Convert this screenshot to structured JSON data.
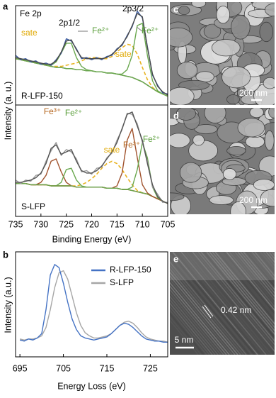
{
  "chart_data": [
    {
      "type": "line",
      "label": "a",
      "ylabel": "Intensity (a. u.)",
      "x": [
        735,
        734,
        733,
        732,
        731,
        730,
        729,
        728,
        727,
        726,
        725,
        724,
        723,
        722,
        721,
        720,
        719,
        718,
        717,
        716,
        715,
        714,
        713,
        712,
        711,
        710,
        709,
        708,
        707,
        706,
        705
      ],
      "xlim": [
        735,
        705
      ],
      "ylim": [
        0.1,
        1.0
      ],
      "annotations": [
        {
          "text": "Fe 2p",
          "color": "#000000"
        },
        {
          "text": "2p1/2",
          "color": "#000000"
        },
        {
          "text": "2p3/2",
          "color": "#000000"
        },
        {
          "text": "sate",
          "color": "#e0a800"
        },
        {
          "text": "Fe²⁺",
          "color": "#5a9e3a"
        },
        {
          "text": "sate",
          "color": "#e0a800"
        },
        {
          "text": "Fe²⁺",
          "color": "#5a9e3a"
        },
        {
          "text": "R-LFP-150",
          "color": "#000000"
        }
      ],
      "series": [
        {
          "color": "#5a6b2e",
          "values": [
            0.52,
            0.51,
            0.5,
            0.49,
            0.48,
            0.47,
            0.46,
            0.45,
            0.44,
            0.44,
            0.43,
            0.43,
            0.42,
            0.42,
            0.41,
            0.41,
            0.4,
            0.4,
            0.39,
            0.39,
            0.38,
            0.37,
            0.36,
            0.35,
            0.33,
            0.31,
            0.28,
            0.25,
            0.22,
            0.2,
            0.18
          ]
        },
        {
          "color": "#e8b322",
          "dash": true,
          "values": [
            0.52,
            0.51,
            0.5,
            0.49,
            0.48,
            0.47,
            0.46,
            0.45,
            0.45,
            0.45,
            0.46,
            0.47,
            0.48,
            0.5,
            0.52,
            0.53,
            0.53,
            0.52,
            0.52,
            0.54,
            0.58,
            0.62,
            0.65,
            0.64,
            0.56,
            0.44,
            0.33,
            0.26,
            0.22,
            0.2,
            0.18
          ]
        },
        {
          "color": "#6aa84f",
          "values": [
            0.52,
            0.51,
            0.5,
            0.49,
            0.48,
            0.47,
            0.46,
            0.46,
            0.49,
            0.57,
            0.66,
            0.66,
            0.53,
            0.45,
            0.42,
            0.41,
            0.4,
            0.4,
            0.39,
            0.39,
            0.38,
            0.37,
            0.36,
            0.35,
            0.33,
            0.31,
            0.28,
            0.25,
            0.22,
            0.2,
            0.18
          ]
        },
        {
          "color": "#6aa84f",
          "values": [
            0.52,
            0.51,
            0.5,
            0.49,
            0.48,
            0.47,
            0.46,
            0.45,
            0.44,
            0.44,
            0.43,
            0.43,
            0.42,
            0.42,
            0.41,
            0.41,
            0.4,
            0.4,
            0.39,
            0.39,
            0.38,
            0.38,
            0.42,
            0.55,
            0.82,
            0.84,
            0.55,
            0.32,
            0.23,
            0.2,
            0.18
          ]
        },
        {
          "color": "#3a5ba0",
          "values": [
            0.55,
            0.51,
            0.52,
            0.49,
            0.5,
            0.47,
            0.48,
            0.46,
            0.51,
            0.57,
            0.7,
            0.68,
            0.61,
            0.52,
            0.53,
            0.51,
            0.53,
            0.51,
            0.54,
            0.55,
            0.61,
            0.64,
            0.73,
            0.81,
            0.95,
            0.89,
            0.63,
            0.37,
            0.28,
            0.21,
            0.2
          ]
        },
        {
          "color": "#4a4a4a",
          "values": [
            0.53,
            0.52,
            0.51,
            0.5,
            0.49,
            0.48,
            0.47,
            0.47,
            0.5,
            0.58,
            0.68,
            0.69,
            0.6,
            0.53,
            0.52,
            0.52,
            0.52,
            0.52,
            0.53,
            0.56,
            0.6,
            0.65,
            0.72,
            0.82,
            0.93,
            0.9,
            0.62,
            0.38,
            0.27,
            0.22,
            0.19
          ]
        }
      ]
    },
    {
      "type": "line",
      "xlabel": "Binding Energy (eV)",
      "x": [
        735,
        734,
        733,
        732,
        731,
        730,
        729,
        728,
        727,
        726,
        725,
        724,
        723,
        722,
        721,
        720,
        719,
        718,
        717,
        716,
        715,
        714,
        713,
        712,
        711,
        710,
        709,
        708,
        707,
        706,
        705
      ],
      "xlim": [
        735,
        705
      ],
      "xticks": [
        735,
        730,
        725,
        720,
        715,
        710,
        705
      ],
      "ylim": [
        0.05,
        1.0
      ],
      "annotations": [
        {
          "text": "Fe³⁺",
          "color": "#b5651d"
        },
        {
          "text": "Fe²⁺",
          "color": "#5a9e3a"
        },
        {
          "text": "sate",
          "color": "#e0a800"
        },
        {
          "text": "Fe³⁺",
          "color": "#b5651d"
        },
        {
          "text": "Fe²⁺",
          "color": "#5a9e3a"
        },
        {
          "text": "S-LFP",
          "color": "#000000"
        }
      ],
      "series": [
        {
          "color": "#b5651d",
          "values": [
            0.33,
            0.33,
            0.33,
            0.32,
            0.32,
            0.32,
            0.32,
            0.31,
            0.31,
            0.31,
            0.31,
            0.31,
            0.3,
            0.3,
            0.3,
            0.3,
            0.3,
            0.3,
            0.29,
            0.29,
            0.29,
            0.28,
            0.28,
            0.27,
            0.26,
            0.25,
            0.24,
            0.22,
            0.2,
            0.18,
            0.16
          ]
        },
        {
          "color": "#e8b322",
          "dash": true,
          "values": [
            0.33,
            0.33,
            0.33,
            0.32,
            0.32,
            0.32,
            0.32,
            0.31,
            0.31,
            0.31,
            0.31,
            0.31,
            0.31,
            0.32,
            0.34,
            0.37,
            0.41,
            0.46,
            0.5,
            0.52,
            0.5,
            0.45,
            0.38,
            0.32,
            0.27,
            0.25,
            0.24,
            0.22,
            0.2,
            0.18,
            0.16
          ]
        },
        {
          "color": "#a0522d",
          "values": [
            0.33,
            0.33,
            0.33,
            0.32,
            0.32,
            0.34,
            0.4,
            0.52,
            0.54,
            0.43,
            0.34,
            0.31,
            0.3,
            0.3,
            0.3,
            0.3,
            0.3,
            0.3,
            0.29,
            0.29,
            0.29,
            0.28,
            0.28,
            0.27,
            0.26,
            0.25,
            0.24,
            0.22,
            0.2,
            0.18,
            0.16
          ]
        },
        {
          "color": "#6aa84f",
          "values": [
            0.33,
            0.33,
            0.33,
            0.32,
            0.32,
            0.32,
            0.32,
            0.31,
            0.31,
            0.34,
            0.45,
            0.46,
            0.36,
            0.31,
            0.3,
            0.3,
            0.3,
            0.3,
            0.29,
            0.29,
            0.29,
            0.28,
            0.28,
            0.27,
            0.26,
            0.25,
            0.24,
            0.22,
            0.2,
            0.18,
            0.16
          ]
        },
        {
          "color": "#a0522d",
          "values": [
            0.33,
            0.33,
            0.33,
            0.32,
            0.32,
            0.32,
            0.32,
            0.31,
            0.31,
            0.31,
            0.31,
            0.31,
            0.3,
            0.3,
            0.3,
            0.3,
            0.3,
            0.3,
            0.29,
            0.29,
            0.31,
            0.42,
            0.7,
            0.8,
            0.55,
            0.32,
            0.25,
            0.22,
            0.2,
            0.18,
            0.16
          ]
        },
        {
          "color": "#6aa84f",
          "values": [
            0.33,
            0.33,
            0.33,
            0.32,
            0.32,
            0.32,
            0.32,
            0.31,
            0.31,
            0.31,
            0.31,
            0.31,
            0.3,
            0.3,
            0.3,
            0.3,
            0.3,
            0.3,
            0.29,
            0.29,
            0.29,
            0.28,
            0.28,
            0.3,
            0.45,
            0.68,
            0.55,
            0.3,
            0.21,
            0.18,
            0.16
          ]
        },
        {
          "color": "#9a9a9a",
          "values": [
            0.36,
            0.33,
            0.36,
            0.35,
            0.4,
            0.41,
            0.52,
            0.61,
            0.68,
            0.57,
            0.62,
            0.6,
            0.54,
            0.43,
            0.44,
            0.41,
            0.46,
            0.47,
            0.55,
            0.59,
            0.7,
            0.79,
            0.93,
            0.92,
            0.84,
            0.68,
            0.52,
            0.3,
            0.24,
            0.17,
            0.17
          ]
        },
        {
          "color": "#555555",
          "values": [
            0.34,
            0.34,
            0.35,
            0.36,
            0.38,
            0.42,
            0.5,
            0.63,
            0.66,
            0.58,
            0.6,
            0.62,
            0.52,
            0.44,
            0.42,
            0.42,
            0.44,
            0.48,
            0.54,
            0.6,
            0.68,
            0.8,
            0.92,
            0.94,
            0.82,
            0.7,
            0.5,
            0.32,
            0.22,
            0.18,
            0.16
          ]
        }
      ]
    },
    {
      "type": "line",
      "label": "b",
      "ylabel": "Intensity (a.u.)",
      "xlabel": "Energy Loss (eV)",
      "legend": "upper right",
      "x": [
        695,
        696,
        697,
        698,
        699,
        700,
        701,
        702,
        703,
        704,
        705,
        706,
        707,
        708,
        709,
        710,
        711,
        712,
        713,
        714,
        715,
        716,
        717,
        718,
        719,
        720,
        721,
        722,
        723,
        724,
        725,
        726,
        727,
        728,
        729
      ],
      "xlim": [
        694,
        729
      ],
      "xticks": [
        695,
        705,
        715,
        725
      ],
      "ylim": [
        0,
        1.0
      ],
      "series": [
        {
          "name": "S-LFP",
          "color": "#a6a6a6",
          "values": [
            0.17,
            0.16,
            0.17,
            0.17,
            0.18,
            0.2,
            0.28,
            0.45,
            0.66,
            0.8,
            0.82,
            0.74,
            0.58,
            0.42,
            0.3,
            0.23,
            0.2,
            0.18,
            0.18,
            0.19,
            0.2,
            0.22,
            0.26,
            0.3,
            0.33,
            0.34,
            0.32,
            0.28,
            0.23,
            0.19,
            0.17,
            0.16,
            0.15,
            0.15,
            0.14
          ]
        },
        {
          "name": "R-LFP-150",
          "color": "#4472c4",
          "values": [
            0.16,
            0.15,
            0.17,
            0.16,
            0.18,
            0.22,
            0.45,
            0.78,
            0.88,
            0.85,
            0.7,
            0.52,
            0.36,
            0.26,
            0.2,
            0.18,
            0.17,
            0.16,
            0.17,
            0.18,
            0.19,
            0.22,
            0.26,
            0.3,
            0.32,
            0.31,
            0.28,
            0.24,
            0.2,
            0.17,
            0.16,
            0.15,
            0.15,
            0.14,
            0.14
          ]
        }
      ]
    }
  ],
  "images": [
    {
      "label": "c",
      "scale_bar": "200 nm"
    },
    {
      "label": "d",
      "scale_bar": "200 nm"
    },
    {
      "label": "e",
      "scale_bar": "5 nm",
      "annotation": "0.42 nm"
    }
  ]
}
